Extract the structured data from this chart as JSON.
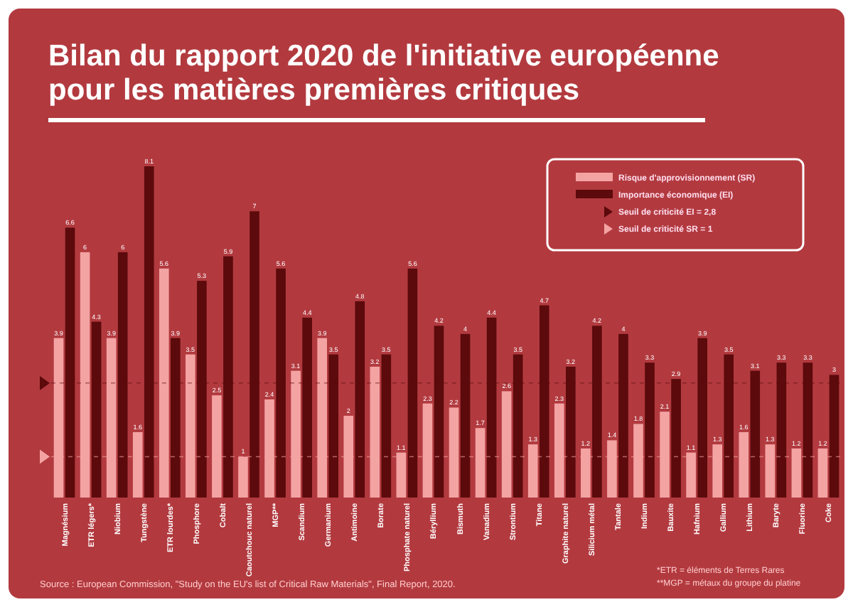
{
  "chart_data": {
    "type": "bar",
    "title": "Bilan du rapport 2020 de l'initiative européenne\npour les matières premières critiques",
    "categories": [
      "Magnésium",
      "ETR légers*",
      "Niobium",
      "Tungstène",
      "ETR lourdes*",
      "Phosphore",
      "Cobalt",
      "Caoutchouc naturel",
      "MGP**",
      "Scandium",
      "Germanium",
      "Antimoine",
      "Borate",
      "Phosphate naturel",
      "Béryllium",
      "Bismuth",
      "Vanadium",
      "Strontium",
      "Titane",
      "Graphite naturel",
      "Silicium métal",
      "Tantale",
      "Indium",
      "Bauxite",
      "Hafnium",
      "Gallium",
      "Lithium",
      "Baryte",
      "Fluorine",
      "Coke"
    ],
    "series": [
      {
        "name": "Risque d'approvisionnement (SR)",
        "color": "#f4a3a3",
        "values": [
          3.9,
          6,
          3.9,
          1.6,
          5.6,
          3.5,
          2.5,
          1,
          2.4,
          3.1,
          3.9,
          2,
          3.2,
          1.1,
          2.3,
          2.2,
          1.7,
          2.6,
          1.3,
          2.3,
          1.2,
          1.4,
          1.8,
          2.1,
          1.1,
          1.3,
          1.6,
          1.3,
          1.2,
          1.2
        ]
      },
      {
        "name": "Importance économique (EI)",
        "color": "#5c0a0c",
        "values": [
          6.6,
          4.3,
          6,
          8.1,
          3.9,
          5.3,
          5.9,
          7,
          5.6,
          4.4,
          3.5,
          4.8,
          3.5,
          5.6,
          4.2,
          4,
          4.4,
          3.5,
          4.7,
          3.2,
          4.2,
          4,
          3.3,
          2.9,
          3.9,
          3.5,
          3.1,
          3.3,
          3.3,
          3
        ]
      }
    ],
    "ref_lines": [
      {
        "axis": "y",
        "value": 2.8,
        "label": "Seuil de criticité EI = 2,8",
        "color": "#5c0a0c"
      },
      {
        "axis": "y",
        "value": 1,
        "label": "Seuil de criticité SR = 1",
        "color": "#f4a3a3"
      }
    ],
    "data_labels": true,
    "tick_labels": "x",
    "grid": false,
    "legend": "top right",
    "annotations": [
      "Source : European Commission, \"Study on the EU's list of Critical Raw Materials\", Final Report, 2020.",
      "*ETR = éléments de Terres Rares",
      "**MGP = métaux du groupe du platine"
    ]
  }
}
